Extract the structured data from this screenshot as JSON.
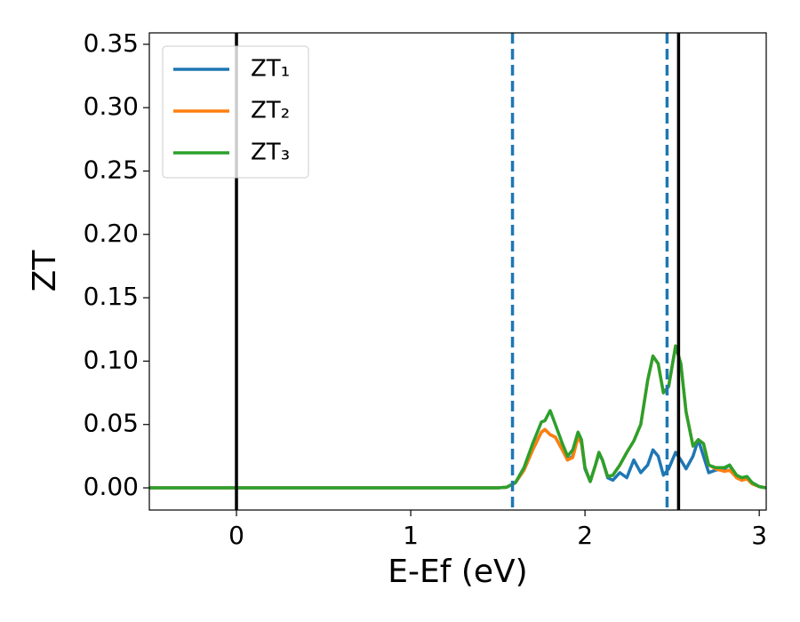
{
  "chart_data": {
    "type": "line",
    "xlabel": "E-Ef (eV)",
    "ylabel": "ZT",
    "x": [
      -0.5,
      0,
      0.5,
      1.0,
      1.5,
      1.55,
      1.6,
      1.65,
      1.7,
      1.75,
      1.77,
      1.8,
      1.83,
      1.87,
      1.9,
      1.93,
      1.96,
      1.98,
      2.0,
      2.03,
      2.06,
      2.08,
      2.1,
      2.13,
      2.16,
      2.2,
      2.24,
      2.28,
      2.32,
      2.36,
      2.39,
      2.42,
      2.45,
      2.48,
      2.52,
      2.55,
      2.58,
      2.62,
      2.65,
      2.68,
      2.71,
      2.75,
      2.8,
      2.83,
      2.87,
      2.9,
      2.93,
      2.96,
      3.0,
      3.04
    ],
    "series": [
      {
        "name": "ZT₁",
        "color": "#1f77b4",
        "values": [
          0,
          0,
          0,
          0,
          0,
          0.0005,
          0.004,
          0.014,
          0.03,
          0.044,
          0.046,
          0.042,
          0.04,
          0.03,
          0.022,
          0.025,
          0.042,
          0.035,
          0.015,
          0.005,
          0.018,
          0.027,
          0.022,
          0.008,
          0.006,
          0.012,
          0.008,
          0.022,
          0.012,
          0.018,
          0.03,
          0.025,
          0.01,
          0.015,
          0.028,
          0.022,
          0.015,
          0.025,
          0.038,
          0.025,
          0.012,
          0.014,
          0.015,
          0.018,
          0.008,
          0.006,
          0.008,
          0.004,
          0.001,
          0
        ]
      },
      {
        "name": "ZT₂",
        "color": "#ff7f0e",
        "values": [
          0,
          0,
          0,
          0,
          0,
          0.0005,
          0.004,
          0.014,
          0.03,
          0.044,
          0.046,
          0.042,
          0.04,
          0.03,
          0.022,
          0.024,
          0.04,
          0.035,
          0.016,
          0.005,
          0.018,
          0.028,
          0.022,
          0.009,
          0.01,
          0.018,
          0.028,
          0.037,
          0.05,
          0.085,
          0.104,
          0.098,
          0.075,
          0.08,
          0.112,
          0.098,
          0.06,
          0.033,
          0.038,
          0.035,
          0.018,
          0.015,
          0.013,
          0.014,
          0.008,
          0.006,
          0.007,
          0.003,
          0.001,
          0
        ]
      },
      {
        "name": "ZT₃",
        "color": "#2ca02c",
        "values": [
          0,
          0,
          0,
          0,
          0,
          0.0005,
          0.004,
          0.016,
          0.035,
          0.052,
          0.053,
          0.061,
          0.05,
          0.035,
          0.025,
          0.03,
          0.044,
          0.038,
          0.016,
          0.005,
          0.018,
          0.028,
          0.022,
          0.009,
          0.01,
          0.018,
          0.028,
          0.037,
          0.05,
          0.085,
          0.104,
          0.098,
          0.075,
          0.08,
          0.112,
          0.098,
          0.06,
          0.033,
          0.038,
          0.035,
          0.018,
          0.016,
          0.016,
          0.018,
          0.01,
          0.008,
          0.009,
          0.004,
          0.001,
          0
        ]
      }
    ],
    "vlines": [
      {
        "x": 0,
        "color": "#000000",
        "style": "solid"
      },
      {
        "x": 2.537,
        "color": "#000000",
        "style": "solid"
      },
      {
        "x": 1.584,
        "color": "#1f77b4",
        "style": "dashed"
      },
      {
        "x": 2.471,
        "color": "#1f77b4",
        "style": "dashed"
      }
    ],
    "xlim": [
      -0.5,
      3.04
    ],
    "ylim": [
      -0.0175,
      0.359
    ],
    "xticks": [
      0,
      1,
      2,
      3
    ],
    "yticks": [
      {
        "value": 0,
        "label": "0.00"
      },
      0.05,
      {
        "value": 0.1,
        "label": "0.10"
      },
      0.15,
      {
        "value": 0.2,
        "label": "0.20"
      },
      0.25,
      {
        "value": 0.3,
        "label": "0.30"
      },
      0.35
    ],
    "grid": false,
    "legend": "upper left"
  }
}
